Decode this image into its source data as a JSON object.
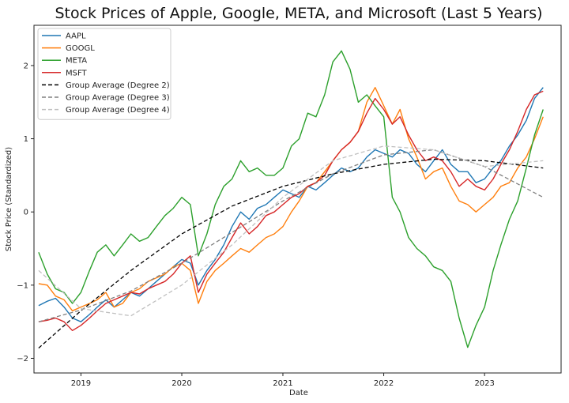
{
  "chart_data": {
    "type": "line",
    "title": "Stock Prices of Apple, Google, META, and Microsoft (Last 5 Years)",
    "xlabel": "Date",
    "ylabel": "Stock Price (Standardized)",
    "xlim": [
      "2018-07-15",
      "2023-10-05"
    ],
    "ylim": [
      -2.2,
      2.55
    ],
    "x_ticks": [
      "2019",
      "2020",
      "2021",
      "2022",
      "2023"
    ],
    "y_ticks": [
      -2,
      -1,
      0,
      1,
      2
    ],
    "y_tick_labels": [
      "−2",
      "−1",
      "0",
      "1",
      "2"
    ],
    "grid": false,
    "legend_position": "top-left",
    "series": [
      {
        "name": "AAPL",
        "color": "#1f77b4",
        "style": "solid",
        "x": [
          "2018-08-01",
          "2018-09-01",
          "2018-10-01",
          "2018-11-01",
          "2018-12-01",
          "2019-01-01",
          "2019-02-01",
          "2019-03-01",
          "2019-04-01",
          "2019-05-01",
          "2019-06-01",
          "2019-07-01",
          "2019-08-01",
          "2019-09-01",
          "2019-10-01",
          "2019-11-01",
          "2019-12-01",
          "2020-01-01",
          "2020-02-01",
          "2020-03-01",
          "2020-04-01",
          "2020-05-01",
          "2020-06-01",
          "2020-07-01",
          "2020-08-01",
          "2020-09-01",
          "2020-10-01",
          "2020-11-01",
          "2020-12-01",
          "2021-01-01",
          "2021-02-01",
          "2021-03-01",
          "2021-04-01",
          "2021-05-01",
          "2021-06-01",
          "2021-07-01",
          "2021-08-01",
          "2021-09-01",
          "2021-10-01",
          "2021-11-01",
          "2021-12-01",
          "2022-01-01",
          "2022-02-01",
          "2022-03-01",
          "2022-04-01",
          "2022-05-01",
          "2022-06-01",
          "2022-07-01",
          "2022-08-01",
          "2022-09-01",
          "2022-10-01",
          "2022-11-01",
          "2022-12-01",
          "2023-01-01",
          "2023-02-01",
          "2023-03-01",
          "2023-04-01",
          "2023-05-01",
          "2023-06-01",
          "2023-07-01",
          "2023-08-01"
        ],
        "y": [
          -1.28,
          -1.22,
          -1.18,
          -1.3,
          -1.45,
          -1.5,
          -1.4,
          -1.3,
          -1.2,
          -1.3,
          -1.2,
          -1.1,
          -1.15,
          -1.05,
          -0.95,
          -0.85,
          -0.75,
          -0.65,
          -0.7,
          -1.0,
          -0.8,
          -0.65,
          -0.45,
          -0.2,
          0.0,
          -0.1,
          0.05,
          0.1,
          0.2,
          0.3,
          0.25,
          0.2,
          0.35,
          0.3,
          0.4,
          0.5,
          0.6,
          0.55,
          0.6,
          0.75,
          0.85,
          0.8,
          0.75,
          0.85,
          0.8,
          0.65,
          0.55,
          0.7,
          0.85,
          0.65,
          0.55,
          0.55,
          0.4,
          0.45,
          0.6,
          0.7,
          0.9,
          1.05,
          1.25,
          1.55,
          1.7
        ]
      },
      {
        "name": "GOOGL",
        "color": "#ff7f0e",
        "style": "solid",
        "x": [
          "2018-08-01",
          "2018-09-01",
          "2018-10-01",
          "2018-11-01",
          "2018-12-01",
          "2019-01-01",
          "2019-02-01",
          "2019-03-01",
          "2019-04-01",
          "2019-05-01",
          "2019-06-01",
          "2019-07-01",
          "2019-08-01",
          "2019-09-01",
          "2019-10-01",
          "2019-11-01",
          "2019-12-01",
          "2020-01-01",
          "2020-02-01",
          "2020-03-01",
          "2020-04-01",
          "2020-05-01",
          "2020-06-01",
          "2020-07-01",
          "2020-08-01",
          "2020-09-01",
          "2020-10-01",
          "2020-11-01",
          "2020-12-01",
          "2021-01-01",
          "2021-02-01",
          "2021-03-01",
          "2021-04-01",
          "2021-05-01",
          "2021-06-01",
          "2021-07-01",
          "2021-08-01",
          "2021-09-01",
          "2021-10-01",
          "2021-11-01",
          "2021-12-01",
          "2022-01-01",
          "2022-02-01",
          "2022-03-01",
          "2022-04-01",
          "2022-05-01",
          "2022-06-01",
          "2022-07-01",
          "2022-08-01",
          "2022-09-01",
          "2022-10-01",
          "2022-11-01",
          "2022-12-01",
          "2023-01-01",
          "2023-02-01",
          "2023-03-01",
          "2023-04-01",
          "2023-05-01",
          "2023-06-01",
          "2023-07-01",
          "2023-08-01"
        ],
        "y": [
          -0.98,
          -1.0,
          -1.15,
          -1.2,
          -1.35,
          -1.3,
          -1.25,
          -1.2,
          -1.1,
          -1.3,
          -1.25,
          -1.1,
          -1.05,
          -0.95,
          -0.9,
          -0.85,
          -0.75,
          -0.7,
          -0.8,
          -1.25,
          -0.95,
          -0.8,
          -0.7,
          -0.6,
          -0.5,
          -0.55,
          -0.45,
          -0.35,
          -0.3,
          -0.2,
          0.0,
          0.15,
          0.35,
          0.4,
          0.55,
          0.7,
          0.85,
          0.95,
          1.1,
          1.5,
          1.7,
          1.45,
          1.2,
          1.4,
          1.0,
          0.75,
          0.45,
          0.55,
          0.6,
          0.35,
          0.15,
          0.1,
          0.0,
          0.1,
          0.2,
          0.35,
          0.4,
          0.6,
          0.75,
          1.0,
          1.3
        ]
      },
      {
        "name": "META",
        "color": "#2ca02c",
        "style": "solid",
        "x": [
          "2018-08-01",
          "2018-09-01",
          "2018-10-01",
          "2018-11-01",
          "2018-12-01",
          "2019-01-01",
          "2019-02-01",
          "2019-03-01",
          "2019-04-01",
          "2019-05-01",
          "2019-06-01",
          "2019-07-01",
          "2019-08-01",
          "2019-09-01",
          "2019-10-01",
          "2019-11-01",
          "2019-12-01",
          "2020-01-01",
          "2020-02-01",
          "2020-03-01",
          "2020-04-01",
          "2020-05-01",
          "2020-06-01",
          "2020-07-01",
          "2020-08-01",
          "2020-09-01",
          "2020-10-01",
          "2020-11-01",
          "2020-12-01",
          "2021-01-01",
          "2021-02-01",
          "2021-03-01",
          "2021-04-01",
          "2021-05-01",
          "2021-06-01",
          "2021-07-01",
          "2021-08-01",
          "2021-09-01",
          "2021-10-01",
          "2021-11-01",
          "2021-12-01",
          "2022-01-01",
          "2022-02-01",
          "2022-03-01",
          "2022-04-01",
          "2022-05-01",
          "2022-06-01",
          "2022-07-01",
          "2022-08-01",
          "2022-09-01",
          "2022-10-01",
          "2022-11-01",
          "2022-12-01",
          "2023-01-01",
          "2023-02-01",
          "2023-03-01",
          "2023-04-01",
          "2023-05-01",
          "2023-06-01",
          "2023-07-01",
          "2023-08-01"
        ],
        "y": [
          -0.55,
          -0.85,
          -1.05,
          -1.1,
          -1.25,
          -1.1,
          -0.8,
          -0.55,
          -0.45,
          -0.6,
          -0.45,
          -0.3,
          -0.4,
          -0.35,
          -0.2,
          -0.05,
          0.05,
          0.2,
          0.1,
          -0.6,
          -0.3,
          0.1,
          0.35,
          0.45,
          0.7,
          0.55,
          0.6,
          0.5,
          0.5,
          0.6,
          0.9,
          1.0,
          1.35,
          1.3,
          1.6,
          2.05,
          2.2,
          1.95,
          1.5,
          1.6,
          1.45,
          1.3,
          0.2,
          0.0,
          -0.35,
          -0.5,
          -0.6,
          -0.75,
          -0.8,
          -0.95,
          -1.45,
          -1.85,
          -1.55,
          -1.3,
          -0.8,
          -0.45,
          -0.1,
          0.15,
          0.6,
          1.05,
          1.4
        ]
      },
      {
        "name": "MSFT",
        "color": "#d62728",
        "style": "solid",
        "x": [
          "2018-08-01",
          "2018-09-01",
          "2018-10-01",
          "2018-11-01",
          "2018-12-01",
          "2019-01-01",
          "2019-02-01",
          "2019-03-01",
          "2019-04-01",
          "2019-05-01",
          "2019-06-01",
          "2019-07-01",
          "2019-08-01",
          "2019-09-01",
          "2019-10-01",
          "2019-11-01",
          "2019-12-01",
          "2020-01-01",
          "2020-02-01",
          "2020-03-01",
          "2020-04-01",
          "2020-05-01",
          "2020-06-01",
          "2020-07-01",
          "2020-08-01",
          "2020-09-01",
          "2020-10-01",
          "2020-11-01",
          "2020-12-01",
          "2021-01-01",
          "2021-02-01",
          "2021-03-01",
          "2021-04-01",
          "2021-05-01",
          "2021-06-01",
          "2021-07-01",
          "2021-08-01",
          "2021-09-01",
          "2021-10-01",
          "2021-11-01",
          "2021-12-01",
          "2022-01-01",
          "2022-02-01",
          "2022-03-01",
          "2022-04-01",
          "2022-05-01",
          "2022-06-01",
          "2022-07-01",
          "2022-08-01",
          "2022-09-01",
          "2022-10-01",
          "2022-11-01",
          "2022-12-01",
          "2023-01-01",
          "2023-02-01",
          "2023-03-01",
          "2023-04-01",
          "2023-05-01",
          "2023-06-01",
          "2023-07-01",
          "2023-08-01"
        ],
        "y": [
          -1.5,
          -1.48,
          -1.45,
          -1.5,
          -1.62,
          -1.55,
          -1.45,
          -1.35,
          -1.25,
          -1.2,
          -1.15,
          -1.1,
          -1.12,
          -1.05,
          -1.0,
          -0.95,
          -0.85,
          -0.7,
          -0.6,
          -1.1,
          -0.85,
          -0.7,
          -0.55,
          -0.35,
          -0.15,
          -0.3,
          -0.2,
          -0.05,
          0.0,
          0.1,
          0.2,
          0.25,
          0.35,
          0.4,
          0.5,
          0.7,
          0.85,
          0.95,
          1.1,
          1.35,
          1.55,
          1.4,
          1.2,
          1.3,
          1.05,
          0.85,
          0.7,
          0.75,
          0.7,
          0.55,
          0.35,
          0.45,
          0.35,
          0.3,
          0.45,
          0.65,
          0.85,
          1.1,
          1.4,
          1.6,
          1.65
        ]
      },
      {
        "name": "Group Average (Degree 2)",
        "color": "#000000",
        "style": "dashed",
        "x": [
          "2018-08-01",
          "2019-01-01",
          "2019-07-01",
          "2020-01-01",
          "2020-07-01",
          "2021-01-01",
          "2021-07-01",
          "2022-01-01",
          "2022-07-01",
          "2023-01-01",
          "2023-08-01"
        ],
        "y": [
          -1.86,
          -1.35,
          -0.8,
          -0.3,
          0.08,
          0.35,
          0.52,
          0.65,
          0.72,
          0.7,
          0.6
        ]
      },
      {
        "name": "Group Average (Degree 3)",
        "color": "#808080",
        "style": "dashed",
        "x": [
          "2018-08-01",
          "2019-01-01",
          "2019-07-01",
          "2020-01-01",
          "2020-07-01",
          "2021-01-01",
          "2021-07-01",
          "2022-01-01",
          "2022-07-01",
          "2023-01-01",
          "2023-08-01"
        ],
        "y": [
          -1.5,
          -1.34,
          -1.08,
          -0.7,
          -0.28,
          0.15,
          0.52,
          0.78,
          0.85,
          0.62,
          0.2
        ]
      },
      {
        "name": "Group Average (Degree 4)",
        "color": "#c0c0c0",
        "style": "dashed",
        "x": [
          "2018-08-01",
          "2019-01-01",
          "2019-07-01",
          "2020-01-01",
          "2020-07-01",
          "2021-01-01",
          "2021-07-01",
          "2022-01-01",
          "2022-07-01",
          "2023-01-01",
          "2023-08-01"
        ],
        "y": [
          -0.8,
          -1.32,
          -1.42,
          -1.0,
          -0.45,
          0.2,
          0.7,
          0.9,
          0.85,
          0.62,
          0.7
        ]
      }
    ]
  }
}
